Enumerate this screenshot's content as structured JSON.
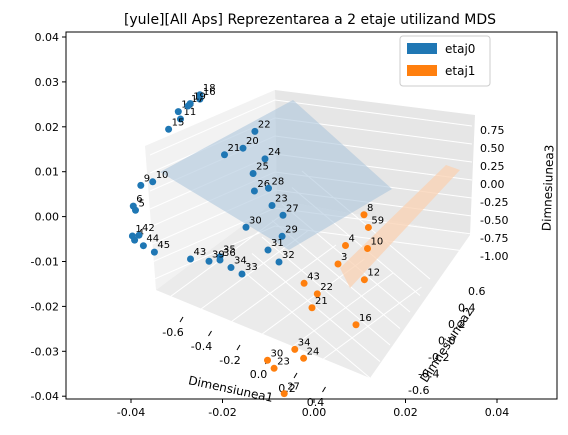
{
  "chart_data": {
    "type": "scatter",
    "title": "[yule][All Aps] Reprezentarea a 2 etaje utilizand MDS",
    "xlabel": "Dimensiunea1",
    "ylabel": "Dimnesiunea2",
    "zlabel": "Dimnesiunea3",
    "legend_position": "top-right",
    "grid": true,
    "overlay_axes": {
      "x_ticks": [
        "-0.04",
        "-0.02",
        "0.00",
        "0.02",
        "0.04"
      ],
      "y_ticks": [
        "0.04",
        "0.03",
        "0.02",
        "0.01",
        "0.00",
        "-0.01",
        "-0.02",
        "-0.03",
        "-0.04"
      ]
    },
    "axis_3d": {
      "x_ticks": [
        "-0.6",
        "-0.4",
        "-0.2",
        "0.0",
        "0.2",
        "0.4"
      ],
      "y_ticks": [
        "-0.6",
        "-0.4",
        "-0.2",
        "0.0",
        "0.2",
        "0.4",
        "0.6"
      ],
      "z_ticks": [
        "0.75",
        "0.50",
        "0.25",
        "0.00",
        "-0.25",
        "-0.50",
        "-0.75",
        "-1.00"
      ]
    },
    "series": [
      {
        "name": "etaj0",
        "color": "#1f77b4",
        "plane_color": "#adc6dc",
        "points": [
          {
            "label": "1",
            "x": -0.43,
            "y": -0.3,
            "z": -0.05
          },
          {
            "label": "4",
            "x": -0.42,
            "y": -0.3,
            "z": -0.08
          },
          {
            "label": "5",
            "x": -0.45,
            "y": -0.25,
            "z": 0.1
          },
          {
            "label": "6",
            "x": -0.46,
            "y": -0.25,
            "z": 0.13
          },
          {
            "label": "9",
            "x": -0.46,
            "y": -0.2,
            "z": 0.25
          },
          {
            "label": "10",
            "x": -0.44,
            "y": -0.15,
            "z": 0.23
          },
          {
            "label": "11",
            "x": -0.45,
            "y": 0.05,
            "z": 0.52
          },
          {
            "label": "14",
            "x": -0.46,
            "y": 0.05,
            "z": 0.58
          },
          {
            "label": "15",
            "x": -0.47,
            "y": 0.0,
            "z": 0.48
          },
          {
            "label": "16",
            "x": -0.43,
            "y": 0.15,
            "z": 0.58
          },
          {
            "label": "17",
            "x": -0.45,
            "y": 0.1,
            "z": 0.57
          },
          {
            "label": "18",
            "x": -0.43,
            "y": 0.15,
            "z": 0.62
          },
          {
            "label": "19",
            "x": -0.44,
            "y": 0.1,
            "z": 0.6
          },
          {
            "label": "20",
            "x": -0.2,
            "y": 0.1,
            "z": 0.38
          },
          {
            "label": "21",
            "x": -0.25,
            "y": 0.05,
            "z": 0.35
          },
          {
            "label": "22",
            "x": -0.18,
            "y": 0.15,
            "z": 0.48
          },
          {
            "label": "23",
            "x": 0.0,
            "y": 0.0,
            "z": 0.15
          },
          {
            "label": "24",
            "x": -0.1,
            "y": 0.1,
            "z": 0.36
          },
          {
            "label": "25",
            "x": -0.12,
            "y": 0.05,
            "z": 0.28
          },
          {
            "label": "26",
            "x": -0.08,
            "y": 0.0,
            "z": 0.22
          },
          {
            "label": "27",
            "x": 0.05,
            "y": 0.0,
            "z": 0.1
          },
          {
            "label": "28",
            "x": -0.05,
            "y": 0.05,
            "z": 0.2
          },
          {
            "label": "29",
            "x": 0.08,
            "y": -0.05,
            "z": 0.0
          },
          {
            "label": "30",
            "x": -0.05,
            "y": -0.1,
            "z": 0.05
          },
          {
            "label": "31",
            "x": 0.05,
            "y": -0.1,
            "z": -0.08
          },
          {
            "label": "32",
            "x": 0.1,
            "y": -0.1,
            "z": -0.15
          },
          {
            "label": "33",
            "x": 0.0,
            "y": -0.2,
            "z": -0.2
          },
          {
            "label": "34",
            "x": -0.05,
            "y": -0.2,
            "z": -0.18
          },
          {
            "label": "35",
            "x": -0.1,
            "y": -0.2,
            "z": -0.12
          },
          {
            "label": "36",
            "x": -0.1,
            "y": -0.2,
            "z": -0.15
          },
          {
            "label": "39",
            "x": -0.15,
            "y": -0.2,
            "z": -0.2
          },
          {
            "label": "42",
            "x": -0.4,
            "y": -0.3,
            "z": -0.02
          },
          {
            "label": "43",
            "x": -0.2,
            "y": -0.25,
            "z": -0.15
          },
          {
            "label": "44",
            "x": -0.38,
            "y": -0.3,
            "z": -0.1
          },
          {
            "label": "45",
            "x": -0.33,
            "y": -0.3,
            "z": -0.12
          }
        ]
      },
      {
        "name": "etaj1",
        "color": "#ff7f0e",
        "plane_color": "#f9d2b3",
        "points": [
          {
            "label": "8",
            "x": 0.35,
            "y": 0.1,
            "z": 0.2
          },
          {
            "label": "59",
            "x": 0.37,
            "y": 0.1,
            "z": 0.1
          },
          {
            "label": "10",
            "x": 0.4,
            "y": 0.05,
            "z": 0.0
          },
          {
            "label": "12",
            "x": 0.42,
            "y": 0.0,
            "z": -0.2
          },
          {
            "label": "16",
            "x": 0.45,
            "y": -0.1,
            "z": -0.45
          },
          {
            "label": "3",
            "x": 0.3,
            "y": 0.0,
            "z": -0.15
          },
          {
            "label": "4",
            "x": 0.3,
            "y": 0.05,
            "z": -0.05
          },
          {
            "label": "21",
            "x": 0.25,
            "y": -0.1,
            "z": -0.45
          },
          {
            "label": "22",
            "x": 0.24,
            "y": -0.05,
            "z": -0.4
          },
          {
            "label": "24",
            "x": 0.28,
            "y": -0.2,
            "z": -0.75
          },
          {
            "label": "34",
            "x": 0.24,
            "y": -0.2,
            "z": -0.7
          },
          {
            "label": "27",
            "x": 0.26,
            "y": -0.3,
            "z": -0.95
          },
          {
            "label": "30",
            "x": 0.15,
            "y": -0.25,
            "z": -0.8
          },
          {
            "label": "23",
            "x": 0.18,
            "y": -0.25,
            "z": -0.85
          },
          {
            "label": "43",
            "x": 0.18,
            "y": -0.05,
            "z": -0.35
          }
        ]
      }
    ]
  }
}
